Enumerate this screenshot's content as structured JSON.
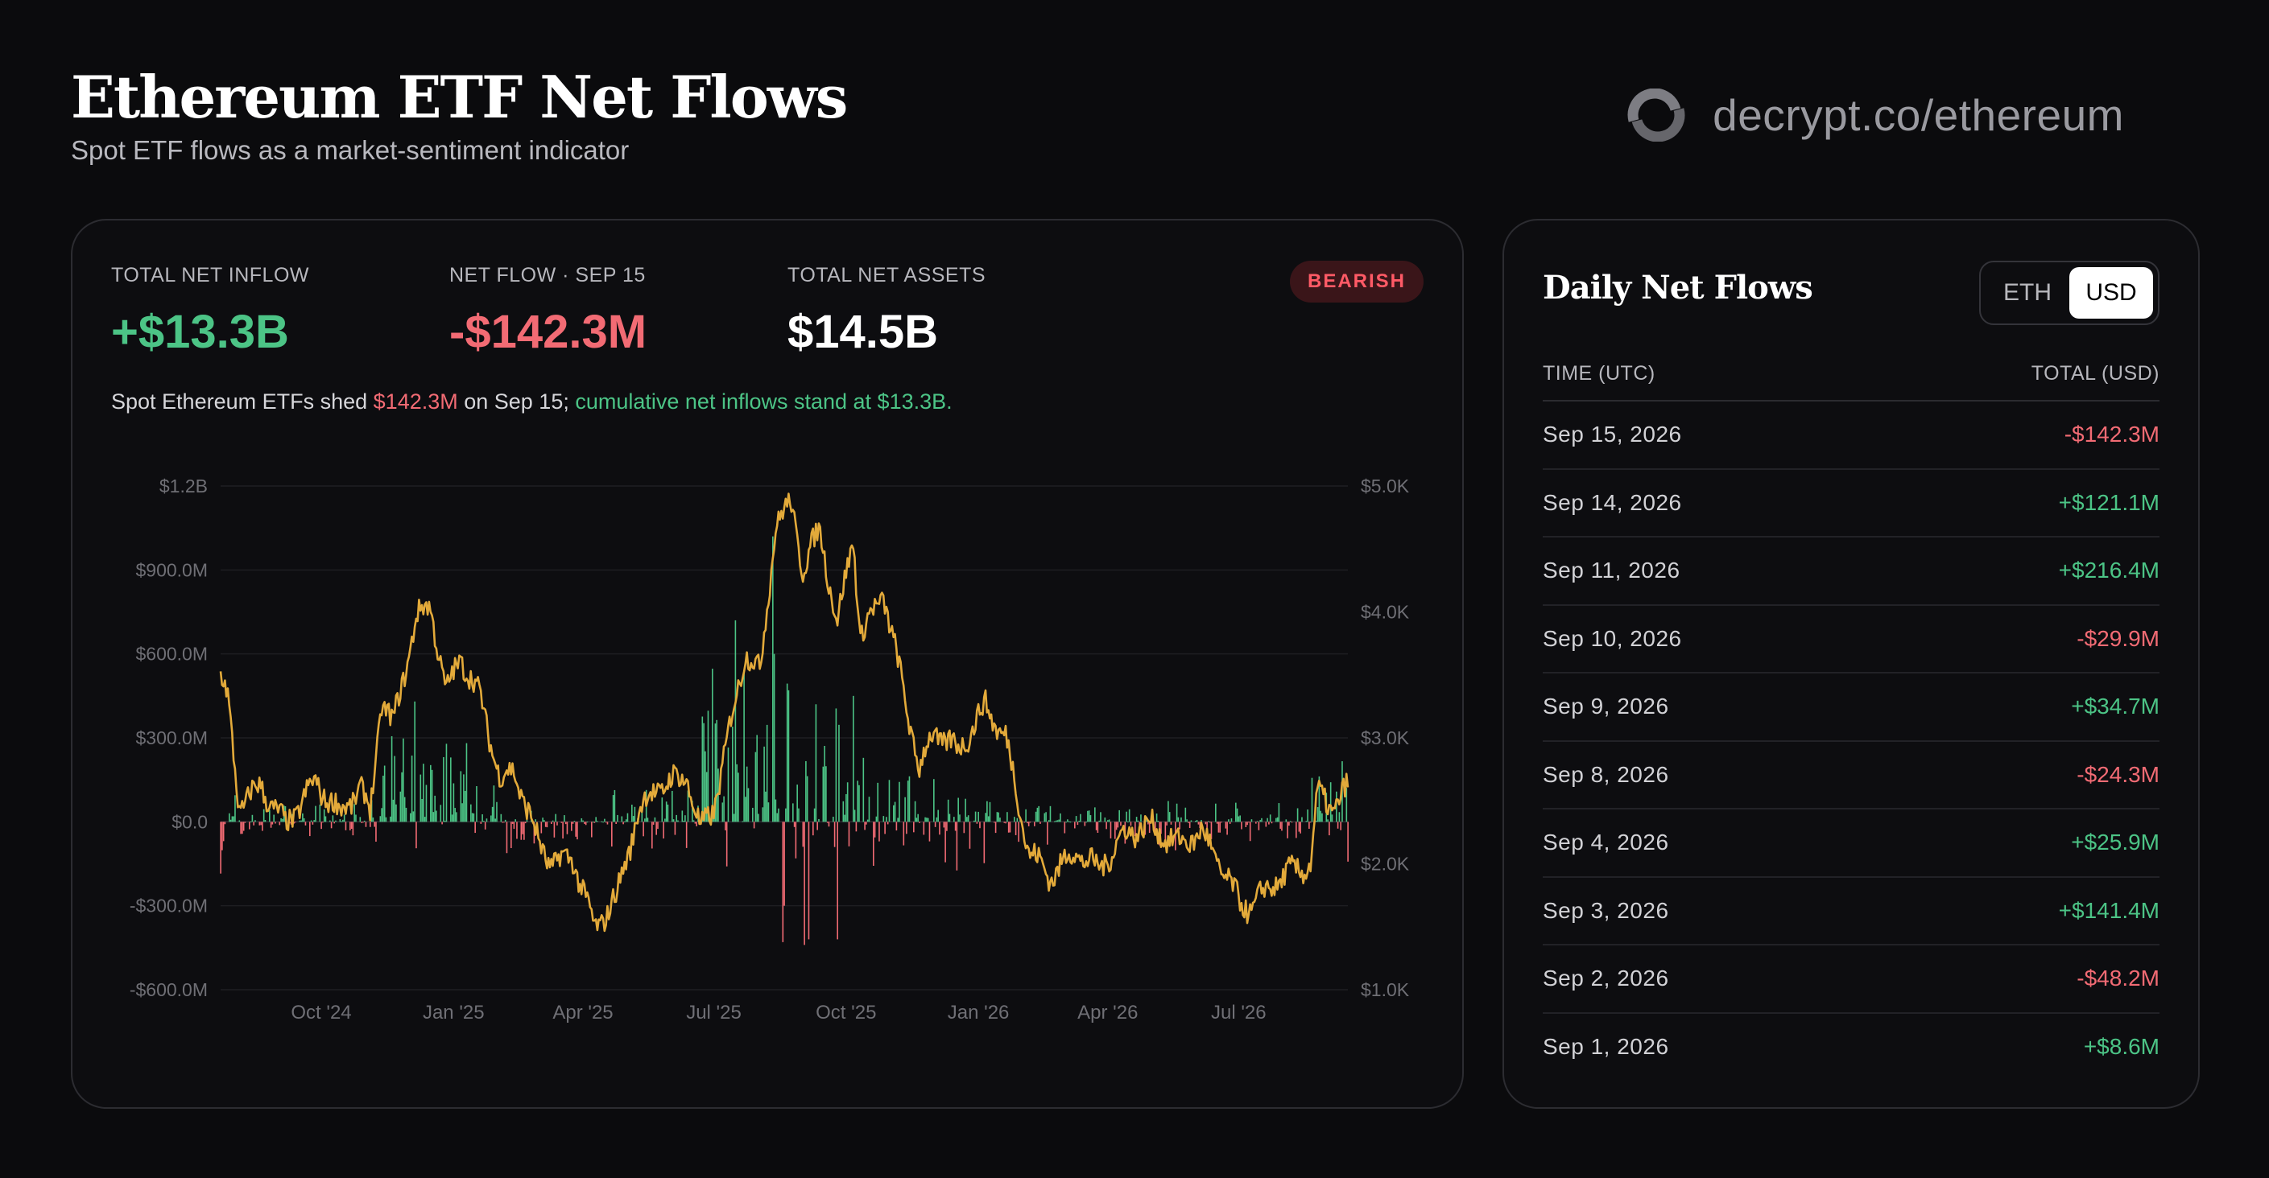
{
  "header": {
    "title": "Ethereum ETF Net Flows",
    "subtitle": "Spot ETF flows as a market-sentiment indicator",
    "brand": "decrypt.co/ethereum"
  },
  "colors": {
    "inflow": "#4cc486",
    "outflow": "#f26b74",
    "price_line": "#e3aa3a",
    "badge": "#ff5a66",
    "background": "#0b0b0d"
  },
  "stats": [
    {
      "label": "TOTAL NET INFLOW",
      "value": "+$13.3B",
      "tone": "green"
    },
    {
      "label": "NET FLOW · SEP 15",
      "value": "-$142.3M",
      "tone": "red"
    },
    {
      "label": "TOTAL NET ASSETS",
      "value": "$14.5B",
      "tone": "white"
    }
  ],
  "badge": "BEARISH",
  "summary": {
    "part1": "Spot Ethereum ETFs shed ",
    "amount": "$142.3M",
    "part2": " on Sep 15; ",
    "part3": "cumulative net inflows stand at $13.3B."
  },
  "side": {
    "title": "Daily Net Flows",
    "toggle": [
      "ETH",
      "USD"
    ],
    "toggle_active": "USD",
    "columns": [
      "TIME (UTC)",
      "TOTAL (USD)"
    ],
    "rows": [
      {
        "date": "Sep 15, 2026",
        "value": "-$142.3M",
        "tone": "red"
      },
      {
        "date": "Sep 14, 2026",
        "value": "+$121.1M",
        "tone": "green"
      },
      {
        "date": "Sep 11, 2026",
        "value": "+$216.4M",
        "tone": "green"
      },
      {
        "date": "Sep 10, 2026",
        "value": "-$29.9M",
        "tone": "red"
      },
      {
        "date": "Sep 9, 2026",
        "value": "+$34.7M",
        "tone": "green"
      },
      {
        "date": "Sep 8, 2026",
        "value": "-$24.3M",
        "tone": "red"
      },
      {
        "date": "Sep 4, 2026",
        "value": "+$25.9M",
        "tone": "green"
      },
      {
        "date": "Sep 3, 2026",
        "value": "+$141.4M",
        "tone": "green"
      },
      {
        "date": "Sep 2, 2026",
        "value": "-$48.2M",
        "tone": "red"
      },
      {
        "date": "Sep 1, 2026",
        "value": "+$8.6M",
        "tone": "green"
      }
    ]
  },
  "chart_data": {
    "type": "bar",
    "grid": true,
    "y_left": {
      "range_musd": [
        -600,
        1200
      ],
      "ticks": [
        1200,
        900,
        600,
        300,
        0,
        -300,
        -600
      ],
      "tick_labels": [
        "$1.2B",
        "$900.0M",
        "$600.0M",
        "$300.0M",
        "$0.0",
        "-$300.0M",
        "-$600.0M"
      ]
    },
    "y_right": {
      "range_usd": [
        1000,
        5000
      ],
      "ticks": [
        5000,
        4000,
        3000,
        2000,
        1000
      ],
      "tick_labels": [
        "$5.0K",
        "$4.0K",
        "$3.0K",
        "$2.0K",
        "$1.0K"
      ]
    },
    "x_ticks": [
      {
        "date": "2024-10-01",
        "label": "Oct '24"
      },
      {
        "date": "2025-01-01",
        "label": "Jan '25"
      },
      {
        "date": "2025-04-01",
        "label": "Apr '25"
      },
      {
        "date": "2025-07-01",
        "label": "Jul '25"
      },
      {
        "date": "2025-10-01",
        "label": "Oct '25"
      },
      {
        "date": "2026-01-01",
        "label": "Jan '26"
      },
      {
        "date": "2026-04-01",
        "label": "Apr '26"
      },
      {
        "date": "2026-07-01",
        "label": "Jul '26"
      }
    ],
    "x_range": [
      "2024-07-23",
      "2026-09-15"
    ],
    "price_anchors": [
      {
        "date": "2024-07-23",
        "price": 3480
      },
      {
        "date": "2024-07-28",
        "price": 3300
      },
      {
        "date": "2024-08-05",
        "price": 2450
      },
      {
        "date": "2024-08-20",
        "price": 2620
      },
      {
        "date": "2024-09-06",
        "price": 2300
      },
      {
        "date": "2024-09-27",
        "price": 2650
      },
      {
        "date": "2024-10-14",
        "price": 2400
      },
      {
        "date": "2024-10-28",
        "price": 2600
      },
      {
        "date": "2024-11-04",
        "price": 2400
      },
      {
        "date": "2024-11-12",
        "price": 3300
      },
      {
        "date": "2024-11-20",
        "price": 3100
      },
      {
        "date": "2024-12-06",
        "price": 3950
      },
      {
        "date": "2024-12-16",
        "price": 4050
      },
      {
        "date": "2024-12-27",
        "price": 3350
      },
      {
        "date": "2025-01-06",
        "price": 3650
      },
      {
        "date": "2025-01-20",
        "price": 3300
      },
      {
        "date": "2025-02-03",
        "price": 2650
      },
      {
        "date": "2025-02-12",
        "price": 2750
      },
      {
        "date": "2025-02-28",
        "price": 2200
      },
      {
        "date": "2025-03-10",
        "price": 2000
      },
      {
        "date": "2025-03-25",
        "price": 2050
      },
      {
        "date": "2025-04-09",
        "price": 1480
      },
      {
        "date": "2025-04-25",
        "price": 1750
      },
      {
        "date": "2025-05-09",
        "price": 2400
      },
      {
        "date": "2025-05-22",
        "price": 2600
      },
      {
        "date": "2025-06-12",
        "price": 2700
      },
      {
        "date": "2025-06-22",
        "price": 2250
      },
      {
        "date": "2025-07-01",
        "price": 2450
      },
      {
        "date": "2025-07-11",
        "price": 3000
      },
      {
        "date": "2025-07-23",
        "price": 3700
      },
      {
        "date": "2025-08-02",
        "price": 3500
      },
      {
        "date": "2025-08-13",
        "price": 4700
      },
      {
        "date": "2025-08-24",
        "price": 4850
      },
      {
        "date": "2025-09-01",
        "price": 4350
      },
      {
        "date": "2025-09-13",
        "price": 4650
      },
      {
        "date": "2025-09-25",
        "price": 3900
      },
      {
        "date": "2025-10-06",
        "price": 4600
      },
      {
        "date": "2025-10-11",
        "price": 3800
      },
      {
        "date": "2025-10-27",
        "price": 4150
      },
      {
        "date": "2025-11-21",
        "price": 2750
      },
      {
        "date": "2025-12-01",
        "price": 3050
      },
      {
        "date": "2025-12-18",
        "price": 2900
      },
      {
        "date": "2026-01-06",
        "price": 3250
      },
      {
        "date": "2026-01-20",
        "price": 3000
      },
      {
        "date": "2026-02-05",
        "price": 2100
      },
      {
        "date": "2026-02-20",
        "price": 1900
      },
      {
        "date": "2026-03-10",
        "price": 2100
      },
      {
        "date": "2026-03-25",
        "price": 1950
      },
      {
        "date": "2026-04-14",
        "price": 2250
      },
      {
        "date": "2026-05-01",
        "price": 2300
      },
      {
        "date": "2026-05-20",
        "price": 2150
      },
      {
        "date": "2026-06-05",
        "price": 2250
      },
      {
        "date": "2026-06-20",
        "price": 1950
      },
      {
        "date": "2026-07-01",
        "price": 1700
      },
      {
        "date": "2026-07-10",
        "price": 1650
      },
      {
        "date": "2026-07-25",
        "price": 1850
      },
      {
        "date": "2026-08-10",
        "price": 1950
      },
      {
        "date": "2026-08-20",
        "price": 2000
      },
      {
        "date": "2026-08-25",
        "price": 2550
      },
      {
        "date": "2026-09-05",
        "price": 2450
      },
      {
        "date": "2026-09-15",
        "price": 2600
      }
    ],
    "flow_regimes": [
      {
        "start": "2024-07-23",
        "end": "2024-08-10",
        "base": -20,
        "spread": 140
      },
      {
        "start": "2024-08-10",
        "end": "2024-11-05",
        "base": 5,
        "spread": 60
      },
      {
        "start": "2024-11-05",
        "end": "2025-01-15",
        "base": 110,
        "spread": 220
      },
      {
        "start": "2025-01-15",
        "end": "2025-02-15",
        "base": 20,
        "spread": 120
      },
      {
        "start": "2025-02-15",
        "end": "2025-04-20",
        "base": -25,
        "spread": 70
      },
      {
        "start": "2025-04-20",
        "end": "2025-06-20",
        "base": 30,
        "spread": 110
      },
      {
        "start": "2025-06-20",
        "end": "2025-08-25",
        "base": 230,
        "spread": 330
      },
      {
        "start": "2025-08-25",
        "end": "2025-10-15",
        "base": 40,
        "spread": 340
      },
      {
        "start": "2025-10-15",
        "end": "2026-01-10",
        "base": 15,
        "spread": 160
      },
      {
        "start": "2026-01-10",
        "end": "2026-08-20",
        "base": -5,
        "spread": 80
      },
      {
        "start": "2026-08-20",
        "end": "2026-09-12",
        "base": 70,
        "spread": 140
      }
    ],
    "flow_overrides": [
      {
        "date": "2025-07-16",
        "value": 720
      },
      {
        "date": "2025-07-22",
        "value": 540
      },
      {
        "date": "2025-08-11",
        "value": 1020
      },
      {
        "date": "2025-08-12",
        "value": 600
      },
      {
        "date": "2025-08-18",
        "value": -430
      },
      {
        "date": "2025-08-19",
        "value": -300
      },
      {
        "date": "2025-08-22",
        "value": 470
      },
      {
        "date": "2025-09-02",
        "value": -440
      },
      {
        "date": "2025-09-05",
        "value": -420
      },
      {
        "date": "2025-09-10",
        "value": 420
      },
      {
        "date": "2025-09-25",
        "value": -420
      },
      {
        "date": "2025-10-06",
        "value": 450
      },
      {
        "date": "2024-12-05",
        "value": 430
      },
      {
        "date": "2026-09-15",
        "value": -142.3
      },
      {
        "date": "2026-09-14",
        "value": 121.1
      },
      {
        "date": "2026-09-11",
        "value": 216.4
      },
      {
        "date": "2026-09-10",
        "value": -29.9
      },
      {
        "date": "2026-09-09",
        "value": 34.7
      },
      {
        "date": "2026-09-08",
        "value": -24.3
      },
      {
        "date": "2026-09-04",
        "value": 25.9
      },
      {
        "date": "2026-09-03",
        "value": 141.4
      },
      {
        "date": "2026-09-02",
        "value": -48.2
      },
      {
        "date": "2026-09-01",
        "value": 8.6
      }
    ]
  }
}
